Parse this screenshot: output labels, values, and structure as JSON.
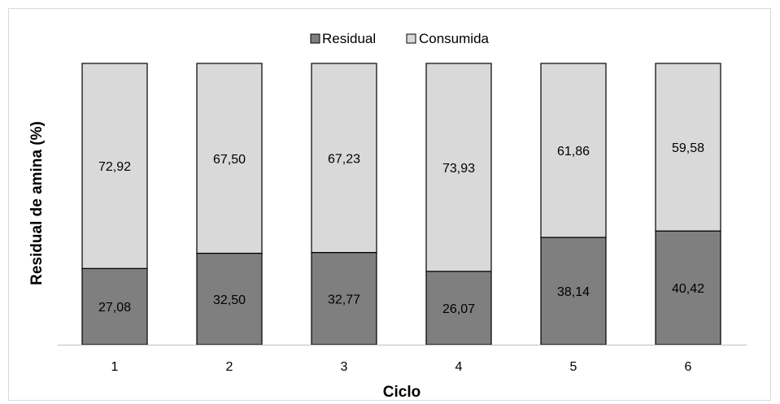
{
  "chart_data": {
    "type": "bar",
    "stacked": true,
    "categories": [
      "1",
      "2",
      "3",
      "4",
      "5",
      "6"
    ],
    "series": [
      {
        "name": "Residual",
        "values": [
          27.08,
          32.5,
          32.77,
          26.07,
          38.14,
          40.42
        ],
        "labels": [
          "27,08",
          "32,50",
          "32,77",
          "26,07",
          "38,14",
          "40,42"
        ],
        "color": "#7f7f7f"
      },
      {
        "name": "Consumida",
        "values": [
          72.92,
          67.5,
          67.23,
          73.93,
          61.86,
          59.58
        ],
        "labels": [
          "72,92",
          "67,50",
          "67,23",
          "73,93",
          "61,86",
          "59,58"
        ],
        "color": "#d9d9d9"
      }
    ],
    "xlabel": "Ciclo",
    "ylabel": "Residual de amina (%)",
    "ylim": [
      0,
      100
    ],
    "grid": false,
    "legend": "top-center"
  }
}
